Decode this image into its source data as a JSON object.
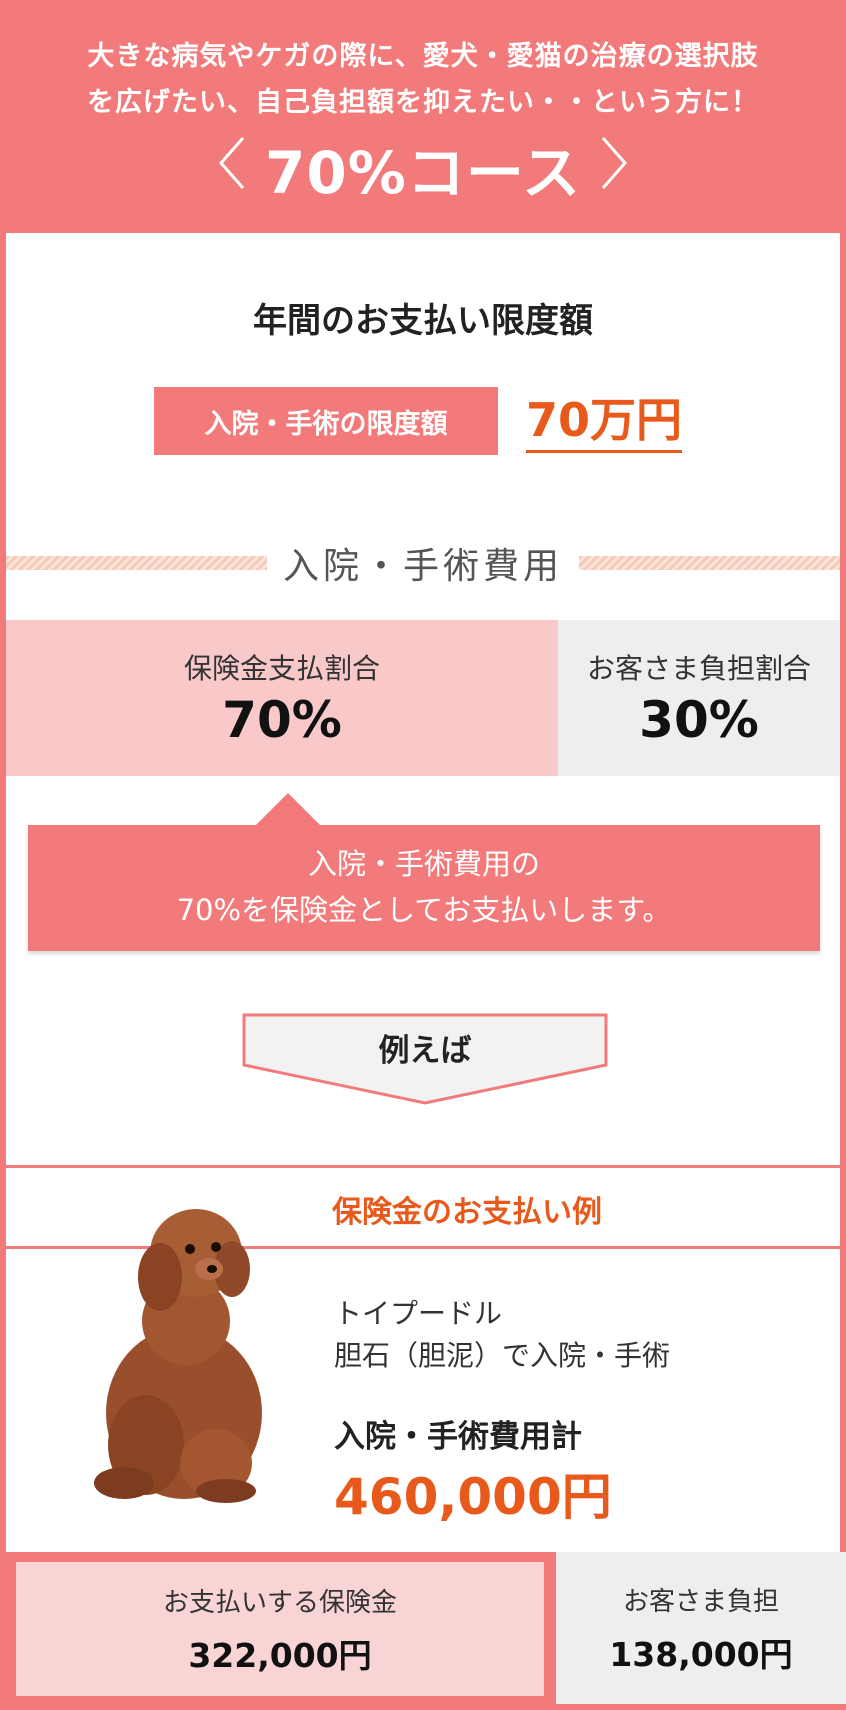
{
  "header": {
    "intro_line1": "大きな病気やケガの際に、愛犬・愛猫の治療の選択肢",
    "intro_line2": "を広げたい、自己負担額を抑えたい・・という方に！",
    "course_title": "70%コース",
    "prev_icon": "chevron-left-icon",
    "next_icon": "chevron-right-icon"
  },
  "limit": {
    "heading": "年間のお支払い限度額",
    "label": "入院・手術の限度額",
    "amount": "70万円"
  },
  "section": {
    "title": "入院・手術費用"
  },
  "ratio": {
    "insurance_label": "保険金支払割合",
    "insurance_value": "70%",
    "customer_label": "お客さま負担割合",
    "customer_value": "30%"
  },
  "callout": {
    "line1": "入院・手術費用の",
    "line2": "70%を保険金としてお支払いします。"
  },
  "example_arrow": {
    "label": "例えば"
  },
  "example": {
    "title": "保険金のお支払い例",
    "breed": "トイプードル",
    "condition": "胆石（胆泥）で入院・手術",
    "total_label": "入院・手術費用計",
    "total_value": "460,000円",
    "image": "toy-poodle-photo"
  },
  "result": {
    "paid_label": "お支払いする保険金",
    "paid_value": "322,000円",
    "customer_label": "お客さま負担",
    "customer_value": "138,000円"
  },
  "colors": {
    "accent": "#f27a7a",
    "accent_light": "#f9c9c9",
    "orange": "#e85a1b",
    "gray": "#eeeeee"
  }
}
